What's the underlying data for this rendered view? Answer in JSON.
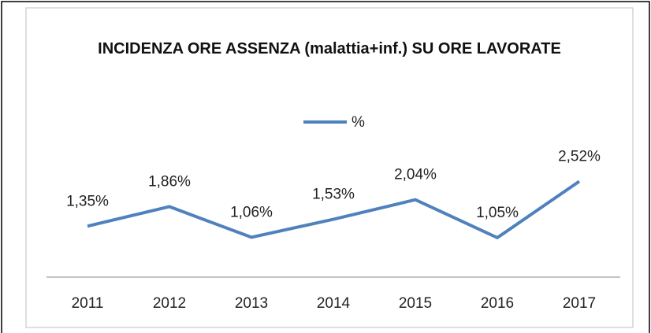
{
  "chart_data": {
    "type": "line",
    "title": "INCIDENZA ORE ASSENZA (malattia+inf.) SU ORE LAVORATE",
    "categories": [
      "2011",
      "2012",
      "2013",
      "2014",
      "2015",
      "2016",
      "2017"
    ],
    "series": [
      {
        "name": "%",
        "color": "#4f81bd",
        "values": [
          1.35,
          1.86,
          1.06,
          1.53,
          2.04,
          1.05,
          2.52
        ],
        "value_labels": [
          "1,35%",
          "1,86%",
          "1,06%",
          "1,53%",
          "2,04%",
          "1,05%",
          "2,52%"
        ]
      }
    ],
    "ylim": [
      0,
      3
    ],
    "legend": "top"
  }
}
